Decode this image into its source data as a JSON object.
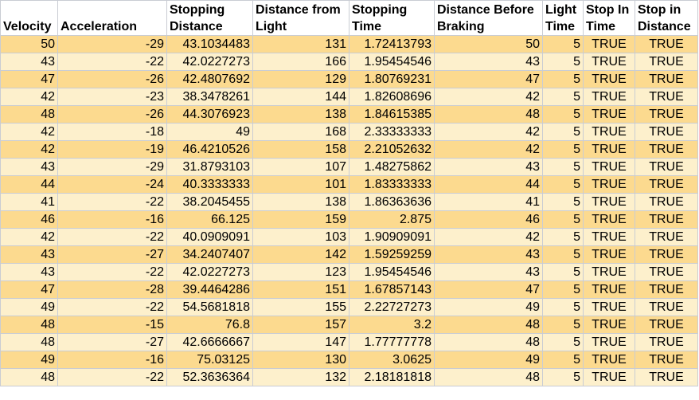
{
  "headers": [
    "Velocity",
    "Acceleration",
    "Stopping Distance",
    "Distance from Light",
    "Stopping Time",
    "Distance Before Braking",
    "Light Time",
    "Stop In Time",
    "Stop in Distance"
  ],
  "rows": [
    [
      "50",
      "-29",
      "43.1034483",
      "131",
      "1.72413793",
      "50",
      "5",
      "TRUE",
      "TRUE"
    ],
    [
      "43",
      "-22",
      "42.0227273",
      "166",
      "1.95454546",
      "43",
      "5",
      "TRUE",
      "TRUE"
    ],
    [
      "47",
      "-26",
      "42.4807692",
      "129",
      "1.80769231",
      "47",
      "5",
      "TRUE",
      "TRUE"
    ],
    [
      "42",
      "-23",
      "38.3478261",
      "144",
      "1.82608696",
      "42",
      "5",
      "TRUE",
      "TRUE"
    ],
    [
      "48",
      "-26",
      "44.3076923",
      "138",
      "1.84615385",
      "48",
      "5",
      "TRUE",
      "TRUE"
    ],
    [
      "42",
      "-18",
      "49",
      "168",
      "2.33333333",
      "42",
      "5",
      "TRUE",
      "TRUE"
    ],
    [
      "42",
      "-19",
      "46.4210526",
      "158",
      "2.21052632",
      "42",
      "5",
      "TRUE",
      "TRUE"
    ],
    [
      "43",
      "-29",
      "31.8793103",
      "107",
      "1.48275862",
      "43",
      "5",
      "TRUE",
      "TRUE"
    ],
    [
      "44",
      "-24",
      "40.3333333",
      "101",
      "1.83333333",
      "44",
      "5",
      "TRUE",
      "TRUE"
    ],
    [
      "41",
      "-22",
      "38.2045455",
      "138",
      "1.86363636",
      "41",
      "5",
      "TRUE",
      "TRUE"
    ],
    [
      "46",
      "-16",
      "66.125",
      "159",
      "2.875",
      "46",
      "5",
      "TRUE",
      "TRUE"
    ],
    [
      "42",
      "-22",
      "40.0909091",
      "103",
      "1.90909091",
      "42",
      "5",
      "TRUE",
      "TRUE"
    ],
    [
      "43",
      "-27",
      "34.2407407",
      "142",
      "1.59259259",
      "43",
      "5",
      "TRUE",
      "TRUE"
    ],
    [
      "43",
      "-22",
      "42.0227273",
      "123",
      "1.95454546",
      "43",
      "5",
      "TRUE",
      "TRUE"
    ],
    [
      "47",
      "-28",
      "39.4464286",
      "151",
      "1.67857143",
      "47",
      "5",
      "TRUE",
      "TRUE"
    ],
    [
      "49",
      "-22",
      "54.5681818",
      "155",
      "2.22727273",
      "49",
      "5",
      "TRUE",
      "TRUE"
    ],
    [
      "48",
      "-15",
      "76.8",
      "157",
      "3.2",
      "48",
      "5",
      "TRUE",
      "TRUE"
    ],
    [
      "48",
      "-27",
      "42.6666667",
      "147",
      "1.77777778",
      "48",
      "5",
      "TRUE",
      "TRUE"
    ],
    [
      "49",
      "-16",
      "75.03125",
      "130",
      "3.0625",
      "49",
      "5",
      "TRUE",
      "TRUE"
    ],
    [
      "48",
      "-22",
      "52.3636364",
      "132",
      "2.18181818",
      "48",
      "5",
      "TRUE",
      "TRUE"
    ]
  ]
}
